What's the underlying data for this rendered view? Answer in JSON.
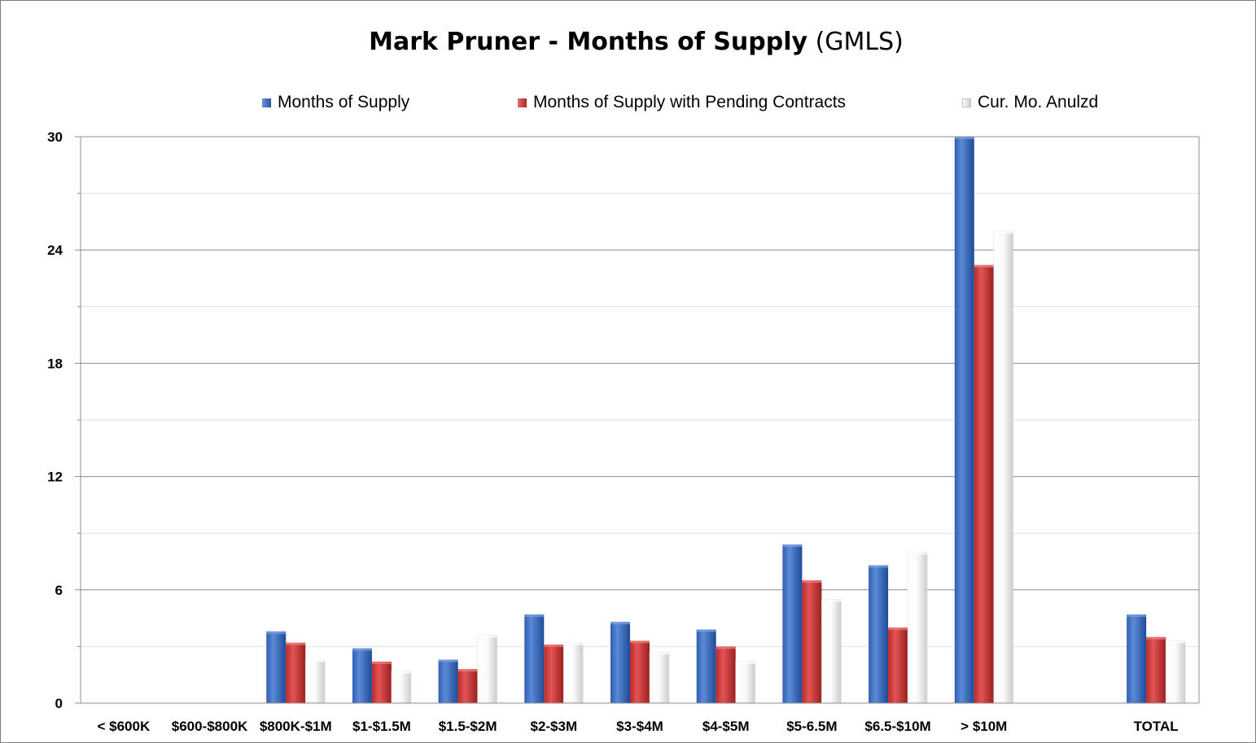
{
  "chart_data": {
    "type": "bar",
    "title": "Mark Pruner - Months of Supply",
    "subtitle": "(GMLS)",
    "xlabel": "",
    "ylabel": "",
    "ylim": [
      0,
      30
    ],
    "yticks": [
      "0",
      "6",
      "12",
      "18",
      "24",
      "30"
    ],
    "grid": true,
    "legend_position": "top",
    "categories": [
      "< $600K",
      "$600-$800K",
      "$800K-$1M",
      "$1-$1.5M",
      "$1.5-$2M",
      "$2-$3M",
      "$3-$4M",
      "$4-$5M",
      "$5-6.5M",
      "$6.5-$10M",
      "> $10M",
      "",
      "TOTAL"
    ],
    "series": [
      {
        "name": "Months of Supply",
        "color": "#4472c4",
        "values": [
          0,
          0,
          3.8,
          2.9,
          2.3,
          4.7,
          4.3,
          3.9,
          8.4,
          7.3,
          30,
          0,
          4.7
        ]
      },
      {
        "name": "Months of Supply with Pending Contracts",
        "color": "#d93c3c",
        "values": [
          0,
          0,
          3.2,
          2.2,
          1.8,
          3.1,
          3.3,
          3.0,
          6.5,
          4.0,
          23.2,
          0,
          3.5
        ]
      },
      {
        "name": "Cur. Mo. Anulzd",
        "color": "#f2f2f2",
        "values": [
          0,
          0,
          2.3,
          1.7,
          3.6,
          3.2,
          2.7,
          2.2,
          5.5,
          8.0,
          25.0,
          0,
          3.3
        ]
      }
    ]
  }
}
